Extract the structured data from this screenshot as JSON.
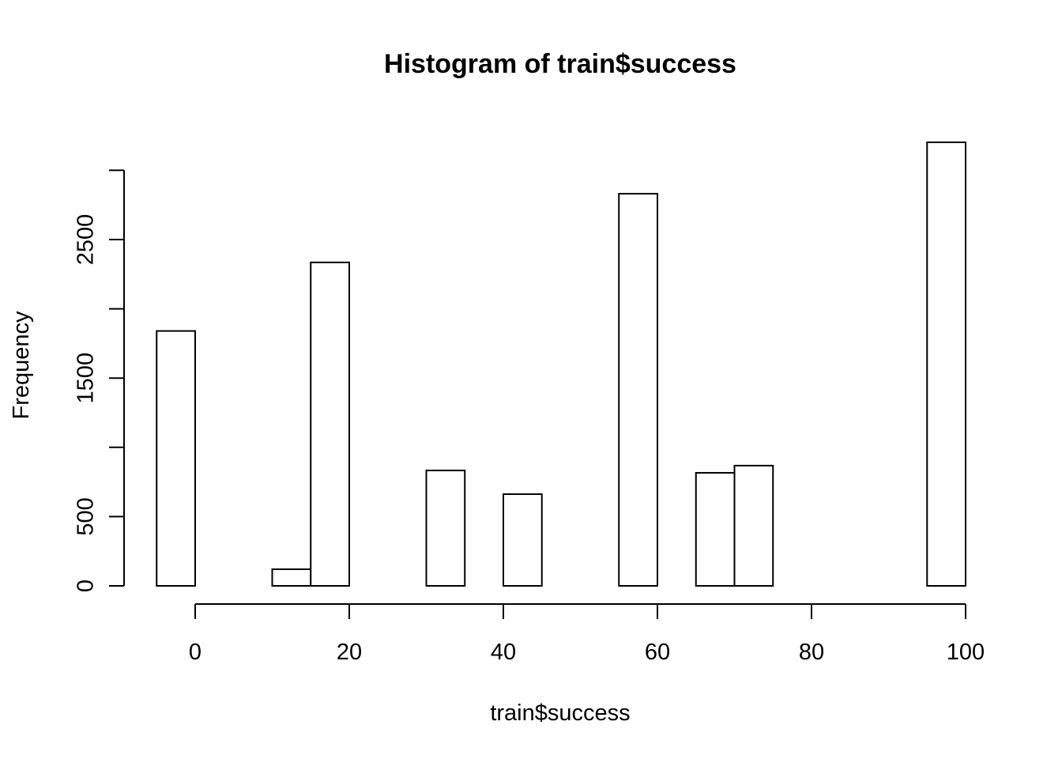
{
  "chart_data": {
    "type": "histogram",
    "title": "Histogram of train$success",
    "xlabel": "train$success",
    "ylabel": "Frequency",
    "bins": [
      -5,
      0,
      5,
      10,
      15,
      20,
      25,
      30,
      35,
      40,
      45,
      50,
      55,
      60,
      65,
      70,
      75,
      80,
      85,
      90,
      95,
      100
    ],
    "values": [
      1840,
      0,
      0,
      120,
      2335,
      0,
      0,
      833,
      0,
      662,
      0,
      0,
      2831,
      0,
      816,
      868,
      0,
      0,
      0,
      0,
      3202
    ],
    "color": "#ffffff",
    "xlim": [
      -5,
      100
    ],
    "xticks": [
      0,
      20,
      40,
      60,
      80,
      100
    ],
    "ylim": [
      0,
      3202
    ],
    "yticks": [
      0,
      500,
      {
        "value": 1000,
        "label": null
      },
      1500,
      {
        "value": 2000,
        "label": null
      },
      2500,
      {
        "value": 3000,
        "label": null
      }
    ],
    "grid": false
  }
}
